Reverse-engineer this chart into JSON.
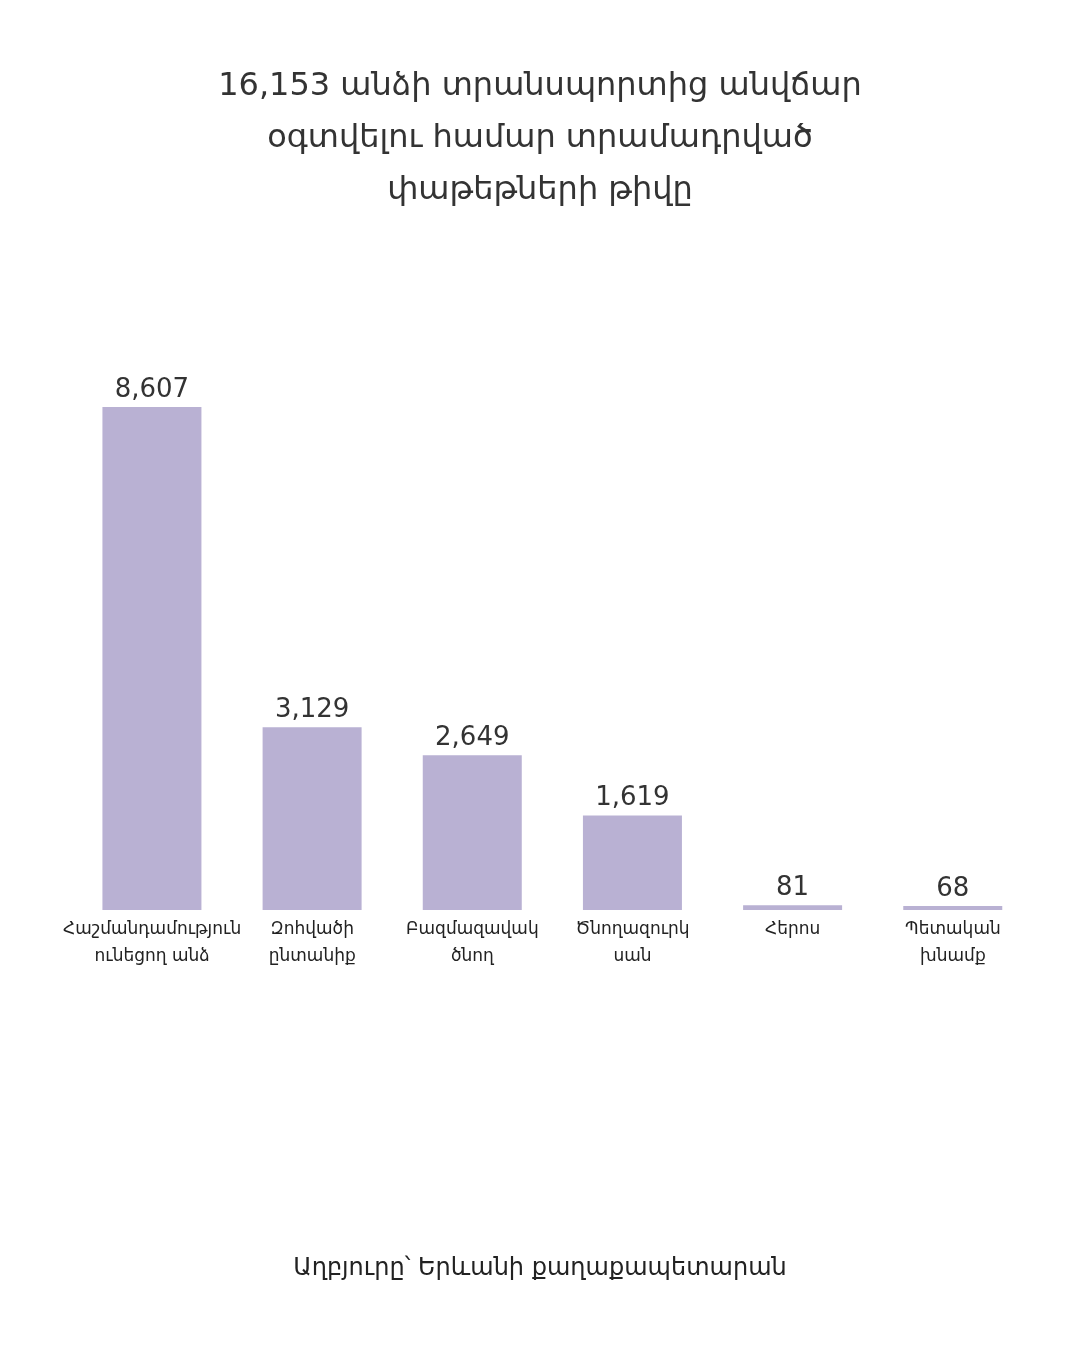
{
  "chart_data": {
    "type": "bar",
    "title": "16,153 անձի տրանսպորտից անվճար օգտվելու համար տրամադրված փաթեթների թիվը",
    "categories": [
      "Հաշմանդամություն ունեցող անձ",
      "Զոհվածի ընտանիք",
      "Բազմազավակ ծնող",
      "Ծնողազուրկ սան",
      "Հերոս",
      "Պետական խնամք"
    ],
    "values": [
      8607,
      3129,
      2649,
      1619,
      81,
      68
    ],
    "value_labels": [
      "8,607",
      "3,129",
      "2,649",
      "1,619",
      "81",
      "68"
    ],
    "color": "#b9b1d3",
    "annotations": [
      "Աղբյուրը՝ Երևանի քաղաքապետարան"
    ]
  }
}
